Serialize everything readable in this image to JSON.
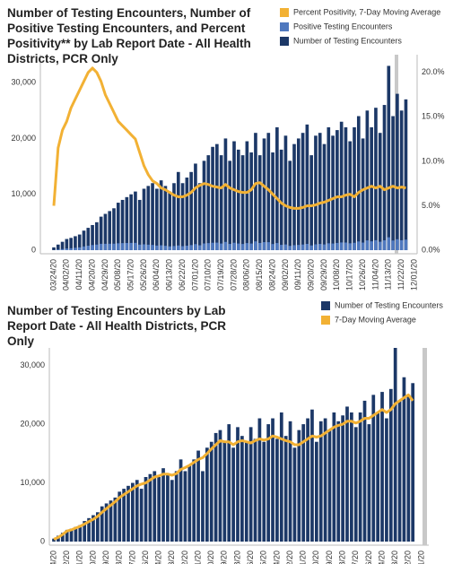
{
  "chart_data": [
    {
      "type": "bar",
      "title": "Number of Testing Encounters, Number of Positive Testing Encounters, and Percent Positivity** by Lab Report Date - All Health Districts, PCR Only",
      "categories": [
        "03/24/20",
        null,
        null,
        "04/02/20",
        null,
        null,
        "04/11/20",
        null,
        null,
        "04/20/20",
        null,
        null,
        "04/29/20",
        null,
        null,
        "05/08/20",
        null,
        null,
        "05/17/20",
        null,
        null,
        "05/26/20",
        null,
        null,
        "06/04/20",
        null,
        null,
        "06/13/20",
        null,
        null,
        "06/22/20",
        null,
        null,
        "07/01/20",
        null,
        null,
        "07/10/20",
        null,
        null,
        "07/19/20",
        null,
        null,
        "07/28/20",
        null,
        null,
        "08/06/20",
        null,
        null,
        "08/15/20",
        null,
        null,
        "08/24/20",
        null,
        null,
        "09/02/20",
        null,
        null,
        "09/11/20",
        null,
        null,
        "09/20/20",
        null,
        null,
        "09/29/20",
        null,
        null,
        "10/08/20",
        null,
        null,
        "10/17/20",
        null,
        null,
        "10/26/20",
        null,
        null,
        "11/04/20",
        null,
        null,
        "11/13/20",
        null,
        null,
        "11/22/20",
        null,
        null,
        "12/01/20"
      ],
      "series": [
        {
          "name": "Percent Positivity, 7-Day Moving Average",
          "type": "line",
          "axis": "y2",
          "color": "#f2b134",
          "values": [
            5.0,
            11.5,
            13.5,
            14.5,
            16.0,
            17.0,
            18.0,
            19.0,
            20.0,
            20.5,
            20.0,
            19.0,
            17.5,
            16.5,
            15.5,
            14.5,
            14.0,
            13.5,
            13.0,
            12.5,
            11.0,
            9.5,
            8.5,
            7.8,
            7.5,
            7.0,
            6.8,
            6.5,
            6.2,
            6.0,
            6.0,
            6.2,
            6.5,
            7.0,
            7.3,
            7.5,
            7.4,
            7.2,
            7.1,
            7.0,
            7.4,
            7.0,
            6.8,
            6.6,
            6.5,
            6.5,
            6.8,
            7.5,
            7.6,
            7.2,
            6.8,
            6.3,
            5.8,
            5.3,
            5.0,
            4.8,
            4.7,
            4.7,
            4.8,
            5.0,
            5.0,
            5.1,
            5.3,
            5.4,
            5.6,
            5.8,
            6.0,
            6.0,
            6.2,
            6.3,
            6.0,
            6.5,
            6.8,
            7.0,
            7.2,
            7.0,
            7.2,
            6.8,
            7.0,
            7.2,
            7.0,
            7.1,
            7.0,
            null,
            null
          ]
        },
        {
          "name": "Positive Testing Encounters",
          "type": "bar",
          "color": "#4f78be",
          "values": [
            25,
            115,
            200,
            290,
            350,
            425,
            500,
            665,
            800,
            920,
            1000,
            1140,
            1140,
            1150,
            1160,
            1230,
            1260,
            1280,
            1300,
            1310,
            990,
            1045,
            980,
            940,
            825,
            875,
            780,
            680,
            745,
            840,
            720,
            805,
            910,
            1085,
            875,
            1200,
            1260,
            1330,
            1350,
            1190,
            1480,
            1120,
            1325,
            1190,
            1105,
            1270,
            1190,
            1575,
            1290,
            1440,
            1430,
            1100,
            1275,
            955,
            1025,
            770,
            895,
            940,
            1010,
            1125,
            850,
            1045,
            1115,
            1025,
            1230,
            1190,
            1290,
            1380,
            1365,
            1230,
            1320,
            1560,
            1360,
            1750,
            1585,
            1785,
            1510,
            1770,
            2310,
            1730,
            1960,
            1775,
            1890,
            null,
            null
          ]
        },
        {
          "name": "Number of Testing Encounters",
          "type": "bar",
          "color": "#1c3867",
          "values": [
            500,
            1000,
            1500,
            2000,
            2200,
            2500,
            2800,
            3500,
            4000,
            4500,
            5000,
            6000,
            6500,
            7000,
            7500,
            8500,
            9000,
            9500,
            10000,
            10500,
            9000,
            11000,
            11500,
            12000,
            11000,
            12500,
            11500,
            10500,
            12000,
            14000,
            12000,
            13000,
            14000,
            15500,
            12000,
            16000,
            17000,
            18500,
            19000,
            17000,
            20000,
            16000,
            19500,
            18000,
            17000,
            19500,
            17500,
            21000,
            17000,
            20000,
            21000,
            17500,
            22000,
            18000,
            20500,
            16000,
            19000,
            20000,
            21000,
            22500,
            17000,
            20500,
            21000,
            19000,
            22000,
            20500,
            21500,
            23000,
            22000,
            19500,
            22000,
            24000,
            20000,
            25000,
            22000,
            25500,
            21000,
            26000,
            33000,
            24000,
            28000,
            25000,
            27000,
            null,
            null
          ]
        }
      ],
      "ylim": [
        0,
        35000
      ],
      "yticks": [
        0,
        {
          "value": 10000,
          "label": "10,000"
        },
        {
          "value": 20000,
          "label": "20,000"
        },
        {
          "value": 30000,
          "label": "30,000"
        }
      ],
      "y2lim": [
        0,
        22
      ],
      "y2ticks": [
        {
          "value": 0,
          "label": "0.0%"
        },
        {
          "value": 5,
          "label": "5.0%"
        },
        {
          "value": 10,
          "label": "10.0%"
        },
        {
          "value": 15,
          "label": "15.0%"
        },
        {
          "value": 20,
          "label": "20.0%"
        }
      ],
      "grid": false
    },
    {
      "type": "bar",
      "title": "Number of Testing Encounters by Lab Report Date - All Health Districts, PCR Only",
      "series": [
        {
          "name": "Number of Testing Encounters",
          "type": "bar",
          "color": "#1c3867",
          "values": [
            500,
            1000,
            1500,
            2000,
            2200,
            2500,
            2800,
            3500,
            4000,
            4500,
            5000,
            6000,
            6500,
            7000,
            7500,
            8500,
            9000,
            9500,
            10000,
            10500,
            9000,
            11000,
            11500,
            12000,
            11000,
            12500,
            11500,
            10500,
            12000,
            14000,
            12000,
            13000,
            14000,
            15500,
            12000,
            16000,
            17000,
            18500,
            19000,
            17000,
            20000,
            16000,
            19500,
            18000,
            17000,
            19500,
            17500,
            21000,
            17000,
            20000,
            21000,
            17500,
            22000,
            18000,
            20500,
            16000,
            19000,
            20000,
            21000,
            22500,
            17000,
            20500,
            21000,
            19000,
            22000,
            20500,
            21500,
            23000,
            22000,
            19500,
            22000,
            24000,
            20000,
            25000,
            22000,
            25500,
            21000,
            26000,
            33000,
            24000,
            28000,
            25000,
            27000,
            null,
            null
          ]
        },
        {
          "name": "7-Day Moving Average",
          "type": "line",
          "color": "#f2b134",
          "values": [
            400,
            700,
            1200,
            1800,
            2000,
            2300,
            2600,
            3000,
            3400,
            3800,
            4300,
            5000,
            5600,
            6200,
            6800,
            7500,
            8000,
            8500,
            9000,
            9500,
            9800,
            10000,
            10500,
            11000,
            11200,
            11500,
            11500,
            11300,
            11600,
            12300,
            12600,
            13000,
            13500,
            14000,
            14300,
            15000,
            15800,
            16500,
            17200,
            17000,
            17000,
            16500,
            17000,
            17200,
            17000,
            16800,
            17200,
            17500,
            17300,
            17500,
            18000,
            17800,
            17500,
            17200,
            17000,
            16500,
            16500,
            17000,
            17500,
            18000,
            17800,
            18000,
            18500,
            19000,
            19500,
            19800,
            20000,
            20500,
            20500,
            20200,
            20500,
            21000,
            21000,
            21500,
            22000,
            22500,
            22000,
            22500,
            23500,
            24000,
            24500,
            25000,
            24000,
            null,
            null
          ]
        }
      ],
      "ylim": [
        0,
        33000
      ],
      "yticks": [
        0,
        {
          "value": 10000,
          "label": "10,000"
        },
        {
          "value": 20000,
          "label": "20,000"
        },
        {
          "value": 30000,
          "label": "30,000"
        }
      ],
      "grid": false
    }
  ]
}
